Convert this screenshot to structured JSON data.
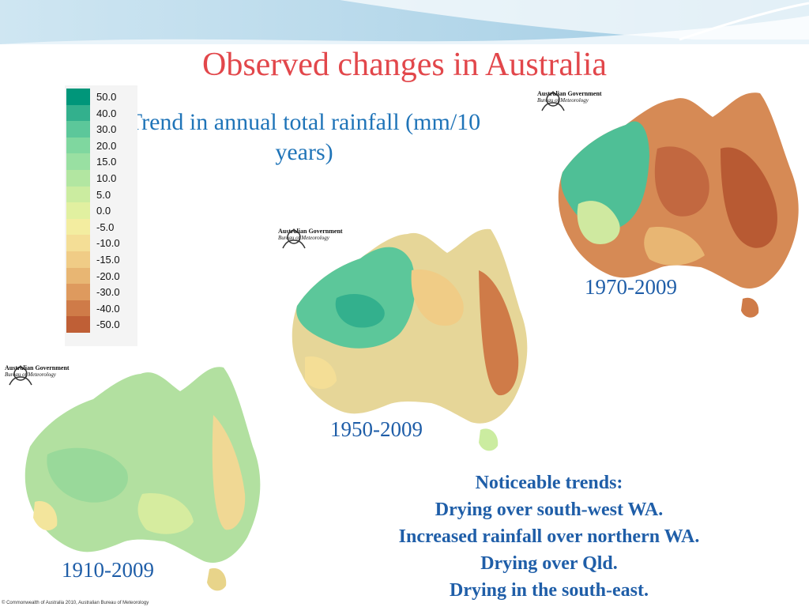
{
  "slide": {
    "title": "Observed changes in Australia",
    "subtitle": "Trend in annual total rainfall (mm/10 years)"
  },
  "legend": {
    "entries": [
      {
        "label": "50.0",
        "color": "#00967a"
      },
      {
        "label": "40.0",
        "color": "#33b08d"
      },
      {
        "label": "30.0",
        "color": "#5cc79a"
      },
      {
        "label": "20.0",
        "color": "#7fd79f"
      },
      {
        "label": "15.0",
        "color": "#99e0a2"
      },
      {
        "label": "10.0",
        "color": "#b2e6a1"
      },
      {
        "label": "5.0",
        "color": "#cbeca0"
      },
      {
        "label": "0.0",
        "color": "#e1f0a0"
      },
      {
        "label": "-5.0",
        "color": "#f3eda0"
      },
      {
        "label": "-10.0",
        "color": "#f4de96"
      },
      {
        "label": "-15.0",
        "color": "#f0cc86"
      },
      {
        "label": "-20.0",
        "color": "#e8b673"
      },
      {
        "label": "-30.0",
        "color": "#de9a5e"
      },
      {
        "label": "-40.0",
        "color": "#cf7b48"
      },
      {
        "label": "-50.0",
        "color": "#bf5f36"
      }
    ]
  },
  "maps": [
    {
      "period": "1910-2009",
      "agency_line1": "Australian Government",
      "agency_line2": "Bureau of Meteorology"
    },
    {
      "period": "1950-2009",
      "agency_line1": "Australian Government",
      "agency_line2": "Bureau of Meteorology"
    },
    {
      "period": "1970-2009",
      "agency_line1": "Australian Government",
      "agency_line2": "Bureau of Meteorology"
    }
  ],
  "notes": {
    "lines": [
      "Noticeable trends:",
      "Drying over south-west WA.",
      "Increased rainfall over northern WA.",
      "Drying over Qld.",
      "Drying in the south-east."
    ]
  },
  "footer": {
    "copyright": "© Commonwealth of Australia 2010, Australian Bureau of Meteorology"
  }
}
